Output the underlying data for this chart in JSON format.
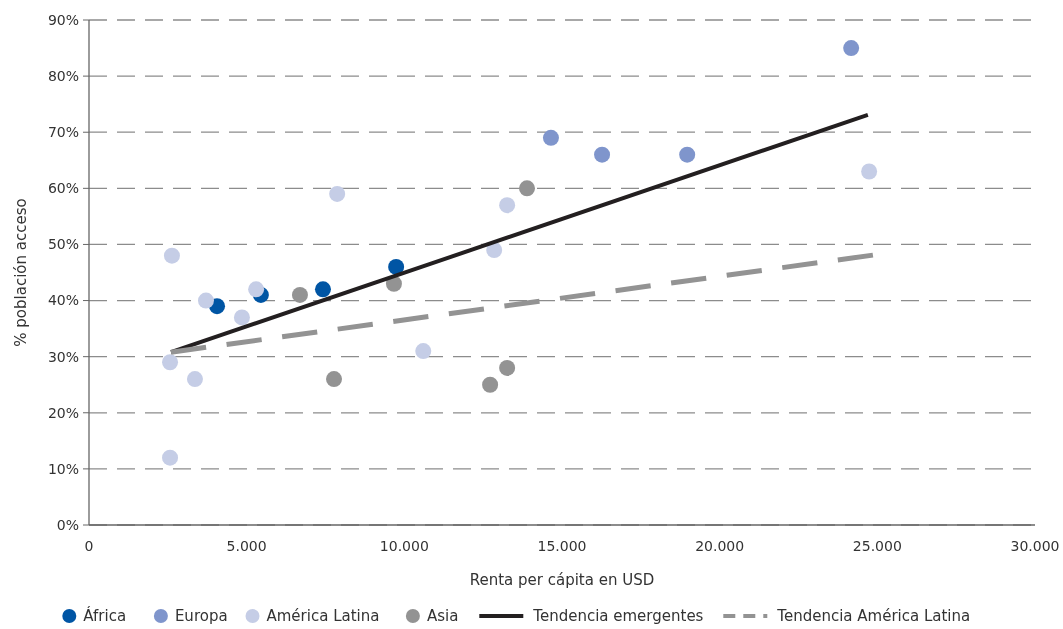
{
  "chart_data": {
    "type": "scatter",
    "xlabel": "Renta per cápita en USD",
    "ylabel": "% población acceso",
    "xlim": [
      0,
      30000
    ],
    "xticks": [
      0,
      {
        "value": 5000,
        "label": "5.000"
      },
      {
        "value": 10000,
        "label": "10.000"
      },
      {
        "value": 15000,
        "label": "15.000"
      },
      {
        "value": 20000,
        "label": "20.000"
      },
      {
        "value": 25000,
        "label": "25.000"
      },
      {
        "value": 30000,
        "label": "30.000"
      }
    ],
    "ylim": [
      0,
      90
    ],
    "yticks": [
      {
        "value": 0,
        "label": "0%"
      },
      {
        "value": 10,
        "label": "10%"
      },
      {
        "value": 20,
        "label": "20%"
      },
      {
        "value": 30,
        "label": "30%"
      },
      {
        "value": 40,
        "label": "40%"
      },
      {
        "value": 50,
        "label": "50%"
      },
      {
        "value": 60,
        "label": "60%"
      },
      {
        "value": 70,
        "label": "70%"
      },
      {
        "value": 80,
        "label": "80%"
      },
      {
        "value": 90,
        "label": "90%"
      }
    ],
    "grid": "y",
    "legend": "bottom",
    "marker": "circle",
    "series": [
      {
        "name": "África",
        "color": "#0055a4",
        "x": [
          4060,
          5450,
          7420,
          9740
        ],
        "values": [
          39,
          41,
          42,
          46
        ]
      },
      {
        "name": "Europa",
        "color": "#7f95cc",
        "x": [
          14650,
          16270,
          18970,
          24170
        ],
        "values": [
          69,
          66,
          66,
          85
        ]
      },
      {
        "name": "América Latina",
        "color": "#c5cde6",
        "x": [
          2630,
          3710,
          4850,
          5300,
          7870,
          2570,
          3360,
          2570,
          10600,
          12850,
          13260,
          24740
        ],
        "values": [
          48,
          40,
          37,
          42,
          59,
          29,
          26,
          12,
          31,
          49,
          57,
          63
        ]
      },
      {
        "name": "Asia",
        "color": "#939393",
        "x": [
          6690,
          7770,
          9670,
          13890,
          12720,
          13260
        ],
        "values": [
          41,
          26,
          43,
          60,
          25,
          28
        ]
      },
      {
        "name": "Tendencia emergentes",
        "type": "line",
        "color": "#231f20",
        "marker": "none",
        "line_style": "solid",
        "x": [
          2600,
          24700
        ],
        "values": [
          30.8,
          73.1
        ]
      },
      {
        "name": "Tendencia América Latina",
        "type": "line",
        "color": "#939393",
        "marker": "none",
        "line_style": "dashed",
        "x": [
          2600,
          24860
        ],
        "values": [
          30.8,
          48.1
        ]
      }
    ]
  }
}
